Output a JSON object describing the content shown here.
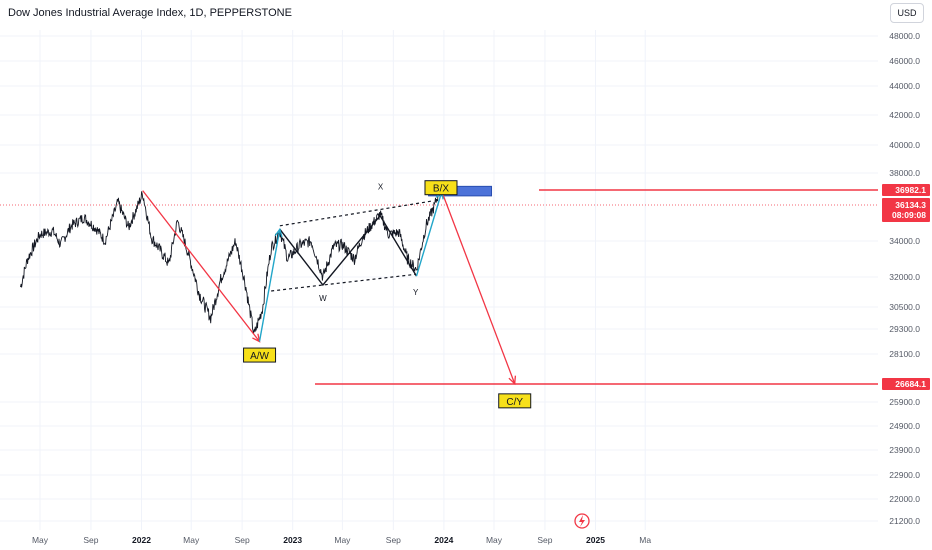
{
  "header": {
    "title": "Dow Jones Industrial Average Index, 1D, PEPPERSTONE",
    "currency": "USD"
  },
  "chart_data": {
    "type": "line",
    "symbol": "Dow Jones Industrial Average Index",
    "interval": "1D",
    "broker": "PEPPERSTONE",
    "y_ticks": [
      {
        "label": "48000.0",
        "value": 48000
      },
      {
        "label": "46000.0",
        "value": 46000
      },
      {
        "label": "44000.0",
        "value": 44000
      },
      {
        "label": "42000.0",
        "value": 42000
      },
      {
        "label": "40000.0",
        "value": 40000
      },
      {
        "label": "38000.0",
        "value": 38000
      },
      {
        "label": "34000.0",
        "value": 34000
      },
      {
        "label": "32000.0",
        "value": 32000
      },
      {
        "label": "30500.0",
        "value": 30500
      },
      {
        "label": "29300.0",
        "value": 29300
      },
      {
        "label": "28100.0",
        "value": 28100
      },
      {
        "label": "25900.0",
        "value": 25900
      },
      {
        "label": "24900.0",
        "value": 24900
      },
      {
        "label": "23900.0",
        "value": 23900
      },
      {
        "label": "22900.0",
        "value": 22900
      },
      {
        "label": "22000.0",
        "value": 22000
      },
      {
        "label": "21200.0",
        "value": 21200
      }
    ],
    "x_ticks": [
      {
        "label": "May",
        "date": "2021-05-01",
        "bold": false
      },
      {
        "label": "Sep",
        "date": "2021-09-01",
        "bold": false
      },
      {
        "label": "2022",
        "date": "2022-01-01",
        "bold": true
      },
      {
        "label": "May",
        "date": "2022-05-01",
        "bold": false
      },
      {
        "label": "Sep",
        "date": "2022-09-01",
        "bold": false
      },
      {
        "label": "2023",
        "date": "2023-01-01",
        "bold": true
      },
      {
        "label": "May",
        "date": "2023-05-01",
        "bold": false
      },
      {
        "label": "Sep",
        "date": "2023-09-01",
        "bold": false
      },
      {
        "label": "2024",
        "date": "2024-01-01",
        "bold": true
      },
      {
        "label": "May",
        "date": "2024-05-01",
        "bold": false
      },
      {
        "label": "Sep",
        "date": "2024-09-01",
        "bold": false
      },
      {
        "label": "2025",
        "date": "2025-01-01",
        "bold": true
      },
      {
        "label": "Ma",
        "date": "2025-05-01",
        "bold": false
      }
    ],
    "series": [
      {
        "x": [
          "2021-03-15",
          "2021-04-01",
          "2021-05-01",
          "2021-06-01",
          "2021-06-20",
          "2021-07-15",
          "2021-08-15",
          "2021-09-15",
          "2021-10-05",
          "2021-11-05",
          "2021-12-01",
          "2022-01-04",
          "2022-01-25",
          "2022-02-15",
          "2022-03-08",
          "2022-03-29",
          "2022-04-20",
          "2022-05-20",
          "2022-06-17",
          "2022-07-10",
          "2022-08-16",
          "2022-09-10",
          "2022-09-30",
          "2022-10-20",
          "2022-11-10",
          "2022-12-01",
          "2022-12-20",
          "2023-01-20",
          "2023-02-15",
          "2023-03-15",
          "2023-04-10",
          "2023-05-01",
          "2023-05-30",
          "2023-06-20",
          "2023-07-31",
          "2023-08-20",
          "2023-09-15",
          "2023-10-05",
          "2023-10-27",
          "2023-11-20",
          "2023-12-08",
          "2023-12-22"
        ],
        "values": [
          31500,
          33000,
          34400,
          34600,
          33800,
          34900,
          35400,
          34700,
          34000,
          36300,
          34800,
          36800,
          34200,
          33500,
          32700,
          35200,
          33600,
          31200,
          29900,
          31800,
          34000,
          31500,
          29000,
          30400,
          33600,
          34600,
          33000,
          33800,
          34000,
          32000,
          33700,
          33800,
          33000,
          34300,
          35600,
          34400,
          34500,
          33000,
          32400,
          35000,
          36000,
          37000
        ]
      }
    ],
    "price_tags": [
      {
        "label": "36982.1",
        "value": 36982.1,
        "color": "#f23645"
      },
      {
        "label": "36134.3",
        "sublabel": "08:09:08",
        "value": 36134.3,
        "color": "#f23645"
      },
      {
        "label": "26684.1",
        "value": 26684.1,
        "color": "#f23645"
      }
    ],
    "horizontal_lines": [
      {
        "value": 36982.1,
        "color": "#f23645"
      },
      {
        "value": 26684.1,
        "color": "#f23645"
      }
    ],
    "annotations": {
      "wave_boxes": [
        {
          "text": "A/W",
          "date": "2022-10-13",
          "value": 28050
        },
        {
          "text": "B/X",
          "date": "2023-12-25",
          "value": 37120
        },
        {
          "text": "C/Y",
          "date": "2024-06-20",
          "value": 25950
        }
      ],
      "wave_letters": [
        {
          "text": "X",
          "date": "2023-08-01",
          "value": 37000
        },
        {
          "text": "W",
          "date": "2023-03-15",
          "value": 30800
        },
        {
          "text": "Y",
          "date": "2023-10-25",
          "value": 31100
        }
      ],
      "zone_box": {
        "date_start": "2023-11-25",
        "date_end": "2024-04-25",
        "value_top": 37200,
        "value_bottom": 36650,
        "color": "#4d73d9"
      },
      "red_paths": [
        [
          {
            "date": "2022-01-04",
            "value": 36950
          },
          {
            "date": "2022-10-13",
            "value": 28700
          }
        ],
        [
          {
            "date": "2023-12-27",
            "value": 36900
          },
          {
            "date": "2024-06-20",
            "value": 26700
          }
        ]
      ],
      "cyan_paths": [
        [
          {
            "date": "2022-10-13",
            "value": 28700
          },
          {
            "date": "2022-12-01",
            "value": 34700
          }
        ],
        [
          {
            "date": "2023-10-27",
            "value": 32050
          },
          {
            "date": "2023-12-27",
            "value": 36900
          }
        ]
      ],
      "black_paths": [
        [
          {
            "date": "2022-12-01",
            "value": 34700
          },
          {
            "date": "2023-03-15",
            "value": 31600
          },
          {
            "date": "2023-07-31",
            "value": 35500
          },
          {
            "date": "2023-10-27",
            "value": 32050
          }
        ]
      ],
      "dotted_channel": [
        [
          {
            "date": "2022-12-01",
            "value": 34900
          },
          {
            "date": "2023-12-01",
            "value": 36350
          }
        ],
        [
          {
            "date": "2022-11-10",
            "value": 31300
          },
          {
            "date": "2023-10-25",
            "value": 32150
          }
        ]
      ]
    }
  }
}
